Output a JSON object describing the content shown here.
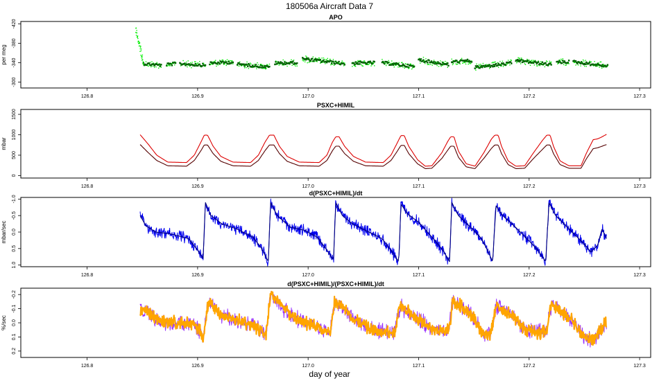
{
  "figure": {
    "title": "180506a    Aircraft Data 7",
    "xlabel": "day of year"
  },
  "chart_data": [
    {
      "type": "scatter",
      "title": "APO",
      "ylabel": "per meg",
      "xlim": [
        126.74,
        127.31
      ],
      "ylim": [
        -425,
        -288
      ],
      "y_reversed": true,
      "xticks": [
        126.8,
        126.9,
        127.0,
        127.1,
        127.2,
        127.3
      ],
      "xtick_labels": [
        "126.8",
        "126.9",
        "127.0",
        "127.1",
        "127.2",
        "127.3"
      ],
      "yticks": [
        -300,
        -340,
        -380,
        -420
      ],
      "ytick_labels": [
        "-300",
        "-340",
        "-380",
        "-420"
      ],
      "colors": {
        "raw": "#00ee00",
        "avg": "#006400"
      },
      "segments": [
        {
          "x": [
            126.851,
            126.867
          ],
          "y0": -338,
          "y1": -335
        },
        {
          "x": [
            126.872,
            126.88
          ],
          "y0": -336,
          "y1": -338
        },
        {
          "x": [
            126.884,
            126.907
          ],
          "y0": -338,
          "y1": -335
        },
        {
          "x": [
            126.911,
            126.932
          ],
          "y0": -339,
          "y1": -341
        },
        {
          "x": [
            126.936,
            126.965
          ],
          "y0": -337,
          "y1": -331
        },
        {
          "x": [
            126.97,
            126.99
          ],
          "y0": -339,
          "y1": -340
        },
        {
          "x": [
            126.995,
            127.033
          ],
          "y0": -348,
          "y1": -338
        },
        {
          "x": [
            127.04,
            127.06
          ],
          "y0": -339,
          "y1": -340
        },
        {
          "x": [
            127.067,
            127.096
          ],
          "y0": -340,
          "y1": -332
        },
        {
          "x": [
            127.1,
            127.127
          ],
          "y0": -346,
          "y1": -336
        },
        {
          "x": [
            127.13,
            127.148
          ],
          "y0": -342,
          "y1": -344
        },
        {
          "x": [
            127.151,
            127.184
          ],
          "y0": -330,
          "y1": -339
        },
        {
          "x": [
            127.188,
            127.22
          ],
          "y0": -345,
          "y1": -336
        },
        {
          "x": [
            127.225,
            127.236
          ],
          "y0": -341,
          "y1": -342
        },
        {
          "x": [
            127.24,
            127.271
          ],
          "y0": -342,
          "y1": -333
        }
      ],
      "startup_spike": {
        "x": [
          126.844,
          126.851
        ],
        "y_start": -410,
        "y_end": -340
      }
    },
    {
      "type": "line",
      "title": "PSXC+HIMIL",
      "ylabel": "mbar",
      "xlim": [
        126.74,
        127.31
      ],
      "ylim": [
        -60,
        1620
      ],
      "xticks": [
        126.8,
        126.9,
        127.0,
        127.1,
        127.2,
        127.3
      ],
      "xtick_labels": [
        "126.8",
        "126.9",
        "127.0",
        "127.1",
        "127.2",
        "127.3"
      ],
      "yticks": [
        0,
        500,
        1000,
        1500
      ],
      "ytick_labels": [
        "0",
        "500",
        "1000",
        "1500"
      ],
      "series": [
        {
          "name": "PSXC+HIMIL",
          "color": "#dd0000",
          "x": [
            126.848,
            126.855,
            126.863,
            126.873,
            126.89,
            126.897,
            126.903,
            126.906,
            126.909,
            126.914,
            126.921,
            126.932,
            126.948,
            126.955,
            126.961,
            126.965,
            126.969,
            126.974,
            126.981,
            126.992,
            127.01,
            127.017,
            127.022,
            127.025,
            127.028,
            127.033,
            127.041,
            127.052,
            127.068,
            127.075,
            127.081,
            127.084,
            127.087,
            127.091,
            127.099,
            127.106,
            127.112,
            127.121,
            127.126,
            127.129,
            127.132,
            127.136,
            127.143,
            127.151,
            127.159,
            127.166,
            127.169,
            127.172,
            127.175,
            127.181,
            127.188,
            127.196,
            127.204,
            127.212,
            127.216,
            127.219,
            127.222,
            127.228,
            127.236,
            127.247,
            127.252,
            127.258,
            127.262,
            127.266,
            127.27
          ],
          "y": [
            1000,
            780,
            500,
            330,
            320,
            500,
            820,
            990,
            990,
            720,
            470,
            330,
            320,
            500,
            820,
            990,
            990,
            720,
            470,
            330,
            320,
            500,
            820,
            950,
            950,
            720,
            470,
            330,
            320,
            500,
            820,
            980,
            980,
            720,
            390,
            230,
            240,
            560,
            820,
            950,
            950,
            600,
            290,
            230,
            560,
            900,
            990,
            990,
            720,
            360,
            230,
            240,
            560,
            860,
            990,
            990,
            720,
            360,
            240,
            240,
            560,
            880,
            900,
            950,
            1010
          ]
        },
        {
          "name": "PSXC+HIMIL (lower)",
          "color": "#550000",
          "x": [
            126.848,
            126.855,
            126.863,
            126.873,
            126.89,
            126.897,
            126.903,
            126.906,
            126.909,
            126.914,
            126.921,
            126.932,
            126.948,
            126.955,
            126.961,
            126.965,
            126.969,
            126.974,
            126.981,
            126.992,
            127.01,
            127.017,
            127.022,
            127.025,
            127.028,
            127.033,
            127.041,
            127.052,
            127.068,
            127.075,
            127.081,
            127.084,
            127.087,
            127.091,
            127.099,
            127.106,
            127.112,
            127.121,
            127.126,
            127.129,
            127.132,
            127.136,
            127.143,
            127.151,
            127.159,
            127.166,
            127.169,
            127.172,
            127.175,
            127.181,
            127.188,
            127.196,
            127.204,
            127.212,
            127.216,
            127.219,
            127.222,
            127.228,
            127.236,
            127.247,
            127.252,
            127.258,
            127.262,
            127.266,
            127.27
          ],
          "y": [
            760,
            570,
            370,
            240,
            230,
            370,
            610,
            750,
            750,
            540,
            350,
            240,
            230,
            370,
            610,
            750,
            750,
            540,
            350,
            240,
            230,
            370,
            610,
            720,
            720,
            540,
            350,
            240,
            230,
            370,
            610,
            740,
            740,
            540,
            290,
            170,
            180,
            420,
            610,
            720,
            720,
            450,
            215,
            170,
            420,
            670,
            750,
            750,
            540,
            270,
            170,
            180,
            420,
            640,
            750,
            750,
            540,
            270,
            180,
            180,
            420,
            660,
            680,
            720,
            760
          ]
        }
      ]
    },
    {
      "type": "line",
      "title": "d(PSXC+HIMIL)/dt",
      "ylabel": "mbar/sec",
      "xlim": [
        126.74,
        127.31
      ],
      "ylim": [
        -1.05,
        1.05
      ],
      "y_reversed": true,
      "xticks": [
        126.8,
        126.9,
        127.0,
        127.1,
        127.2,
        127.3
      ],
      "xtick_labels": [
        "126.8",
        "126.9",
        "127.0",
        "127.1",
        "127.2",
        "127.3"
      ],
      "yticks": [
        -1.0,
        -0.5,
        0.0,
        0.5,
        1.0
      ],
      "ytick_labels": [
        "-1.0",
        "-0.5",
        "0.0",
        "0.5",
        "1.0"
      ],
      "series": [
        {
          "name": "d(PSXC+HIMIL)/dt",
          "color": "#0000ee",
          "noise": 0.15,
          "x": [
            126.848,
            126.853,
            126.862,
            126.875,
            126.892,
            126.9,
            126.905,
            126.907,
            126.912,
            126.922,
            126.935,
            126.95,
            126.958,
            126.964,
            126.966,
            126.972,
            126.984,
            126.997,
            127.008,
            127.016,
            127.023,
            127.025,
            127.031,
            127.04,
            127.052,
            127.067,
            127.076,
            127.082,
            127.084,
            127.09,
            127.1,
            127.112,
            127.122,
            127.128,
            127.13,
            127.136,
            127.147,
            127.157,
            127.163,
            127.167,
            127.17,
            127.176,
            127.186,
            127.198,
            127.208,
            127.215,
            127.218,
            127.224,
            127.236,
            127.248,
            127.256,
            127.262,
            127.266,
            127.27
          ],
          "y": [
            -0.5,
            -0.2,
            0.0,
            0.05,
            0.2,
            0.55,
            0.8,
            -0.9,
            -0.5,
            -0.25,
            -0.1,
            0.15,
            0.5,
            0.9,
            -0.9,
            -0.5,
            -0.15,
            -0.05,
            0.15,
            0.5,
            0.85,
            -0.9,
            -0.5,
            -0.25,
            -0.05,
            0.2,
            0.6,
            0.9,
            -0.85,
            -0.55,
            -0.3,
            0.15,
            0.55,
            0.9,
            -0.9,
            -0.5,
            -0.15,
            0.2,
            0.6,
            0.9,
            -0.8,
            -0.5,
            -0.2,
            0.2,
            0.55,
            0.9,
            -0.9,
            -0.5,
            -0.1,
            0.3,
            0.6,
            0.4,
            -0.1,
            0.2
          ]
        },
        {
          "name": "d(PSXC+HIMIL)/dt (smoothed)",
          "color": "#00007a",
          "noise": 0.0,
          "x": [
            126.848,
            126.853,
            126.862,
            126.875,
            126.892,
            126.9,
            126.905,
            126.907,
            126.912,
            126.922,
            126.935,
            126.95,
            126.958,
            126.964,
            126.966,
            126.972,
            126.984,
            126.997,
            127.008,
            127.016,
            127.023,
            127.025,
            127.031,
            127.04,
            127.052,
            127.067,
            127.076,
            127.082,
            127.084,
            127.09,
            127.1,
            127.112,
            127.122,
            127.128,
            127.13,
            127.136,
            127.147,
            127.157,
            127.163,
            127.167,
            127.17,
            127.176,
            127.186,
            127.198,
            127.208,
            127.215,
            127.218,
            127.224,
            127.236,
            127.248,
            127.256,
            127.262,
            127.266,
            127.27
          ],
          "y": [
            -0.5,
            -0.2,
            0.0,
            0.05,
            0.2,
            0.55,
            0.8,
            -0.9,
            -0.5,
            -0.25,
            -0.1,
            0.15,
            0.5,
            0.9,
            -0.9,
            -0.5,
            -0.15,
            -0.05,
            0.15,
            0.5,
            0.85,
            -0.9,
            -0.5,
            -0.25,
            -0.05,
            0.2,
            0.6,
            0.9,
            -0.85,
            -0.55,
            -0.3,
            0.15,
            0.55,
            0.9,
            -0.9,
            -0.5,
            -0.15,
            0.2,
            0.6,
            0.9,
            -0.8,
            -0.5,
            -0.2,
            0.2,
            0.55,
            0.9,
            -0.9,
            -0.5,
            -0.1,
            0.3,
            0.6,
            0.4,
            -0.1,
            0.2
          ]
        }
      ]
    },
    {
      "type": "line",
      "title": "d(PSXC+HIMIL)/(PSXC+HIMIL)/dt",
      "ylabel": "%/sec",
      "xlim": [
        126.74,
        127.31
      ],
      "ylim": [
        -0.245,
        0.245
      ],
      "y_reversed": true,
      "xticks": [
        126.8,
        126.9,
        127.0,
        127.1,
        127.2,
        127.3
      ],
      "xtick_labels": [
        "126.8",
        "126.9",
        "127.0",
        "127.1",
        "127.2",
        "127.3"
      ],
      "yticks": [
        -0.2,
        -0.1,
        0.0,
        0.1,
        0.2
      ],
      "ytick_labels": [
        "-0.2",
        "-0.1",
        "0.0",
        "0.1",
        "0.2"
      ],
      "series": [
        {
          "name": "d(PSXC+HIMIL)/(PSXC+HIMIL)/dt (raw)",
          "color": "#9933ff",
          "noise": 0.05,
          "x": [
            126.848,
            126.855,
            126.862,
            126.872,
            126.885,
            126.895,
            126.902,
            126.905,
            126.91,
            126.92,
            126.935,
            126.95,
            126.962,
            126.966,
            126.972,
            126.985,
            126.998,
            127.01,
            127.02,
            127.024,
            127.03,
            127.04,
            127.055,
            127.068,
            127.078,
            127.083,
            127.09,
            127.1,
            127.112,
            127.12,
            127.127,
            127.131,
            127.138,
            127.148,
            127.158,
            127.165,
            127.17,
            127.176,
            127.186,
            127.196,
            127.208,
            127.216,
            127.22,
            127.23,
            127.24,
            127.25,
            127.258,
            127.265,
            127.27
          ],
          "y": [
            -0.1,
            -0.08,
            -0.02,
            0.0,
            0.0,
            0.02,
            0.05,
            0.1,
            -0.15,
            -0.05,
            -0.02,
            0.02,
            0.08,
            -0.2,
            -0.15,
            -0.05,
            0.0,
            0.04,
            0.08,
            -0.15,
            -0.12,
            -0.04,
            0.04,
            0.06,
            0.08,
            -0.12,
            -0.08,
            -0.02,
            0.04,
            0.06,
            0.06,
            -0.15,
            -0.12,
            -0.05,
            0.08,
            0.08,
            -0.12,
            -0.1,
            -0.05,
            0.05,
            0.07,
            0.06,
            -0.12,
            -0.08,
            0.0,
            0.1,
            0.12,
            0.05,
            -0.02
          ]
        },
        {
          "name": "d(PSXC+HIMIL)/(PSXC+HIMIL)/dt",
          "color": "#ffa500",
          "noise": 0.04,
          "x": [
            126.848,
            126.855,
            126.862,
            126.872,
            126.885,
            126.895,
            126.902,
            126.905,
            126.91,
            126.92,
            126.935,
            126.95,
            126.962,
            126.966,
            126.972,
            126.985,
            126.998,
            127.01,
            127.02,
            127.024,
            127.03,
            127.04,
            127.055,
            127.068,
            127.078,
            127.083,
            127.09,
            127.1,
            127.112,
            127.12,
            127.127,
            127.131,
            127.138,
            127.148,
            127.158,
            127.165,
            127.17,
            127.176,
            127.186,
            127.196,
            127.208,
            127.216,
            127.22,
            127.23,
            127.24,
            127.25,
            127.258,
            127.265,
            127.27
          ],
          "y": [
            -0.1,
            -0.08,
            -0.02,
            0.0,
            0.0,
            0.02,
            0.05,
            0.1,
            -0.15,
            -0.05,
            -0.02,
            0.02,
            0.08,
            -0.2,
            -0.15,
            -0.05,
            0.0,
            0.04,
            0.08,
            -0.15,
            -0.12,
            -0.04,
            0.04,
            0.06,
            0.08,
            -0.12,
            -0.08,
            -0.02,
            0.04,
            0.06,
            0.06,
            -0.15,
            -0.12,
            -0.05,
            0.08,
            0.08,
            -0.12,
            -0.1,
            -0.05,
            0.05,
            0.07,
            0.06,
            -0.12,
            -0.08,
            0.0,
            0.1,
            0.12,
            0.05,
            -0.02
          ]
        }
      ]
    }
  ]
}
